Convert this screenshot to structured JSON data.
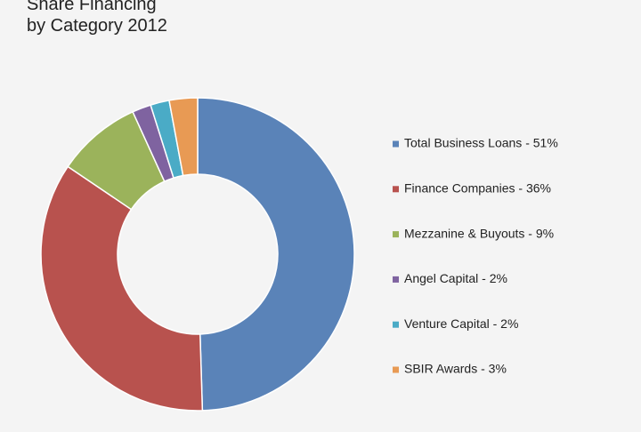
{
  "chart_data": {
    "type": "donut",
    "title": "Share Financing\nby Category 2012",
    "categories": [
      "Total Business Loans - 51%",
      "Finance Companies - 36%",
      "Mezzanine & Buyouts - 9%",
      "Angel Capital - 2%",
      "Venture Capital - 2%",
      "SBIR Awards - 3%"
    ],
    "values": [
      51,
      36,
      9,
      2,
      2,
      3
    ],
    "colors": [
      "#5a83b8",
      "#b8524e",
      "#9bb35b",
      "#7f63a0",
      "#4aabc6",
      "#e89a54"
    ],
    "legend": "right"
  }
}
